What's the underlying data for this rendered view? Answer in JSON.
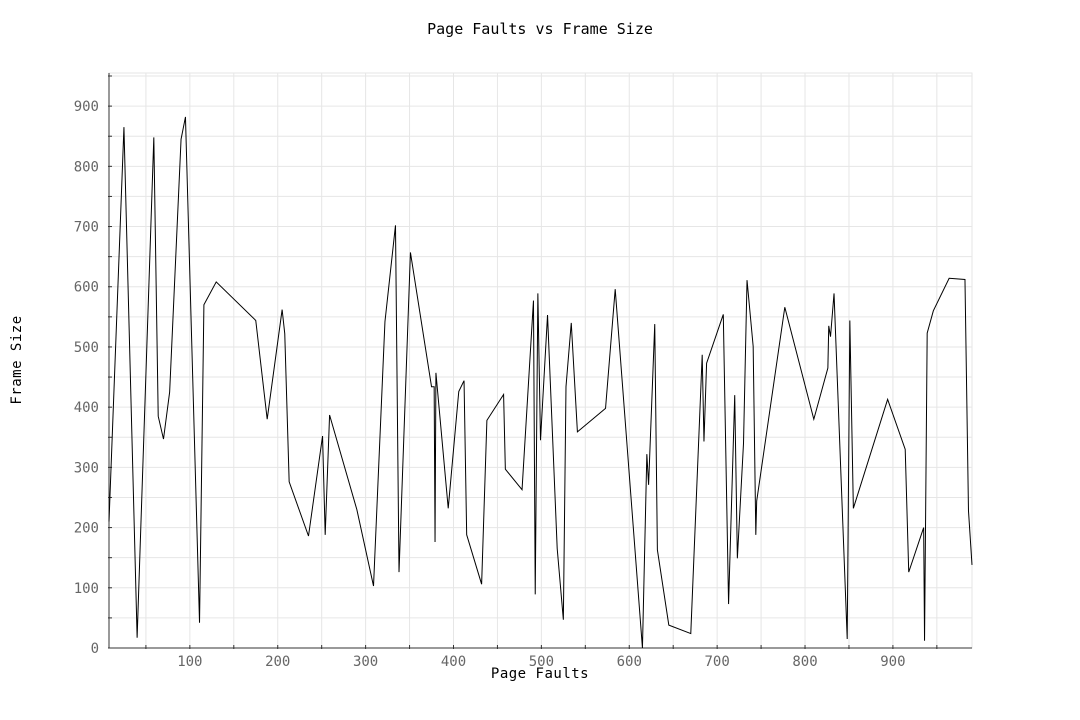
{
  "chart_data": {
    "type": "line",
    "title": "Page Faults vs Frame Size",
    "xlabel": "Page Faults",
    "ylabel": "Frame Size",
    "xlim": [
      8,
      990
    ],
    "ylim": [
      0,
      955
    ],
    "x_ticks": [
      100,
      200,
      300,
      400,
      500,
      600,
      700,
      800,
      900
    ],
    "y_ticks": [
      0,
      100,
      200,
      300,
      400,
      500,
      600,
      700,
      800,
      900
    ],
    "grid": true,
    "legend": "none",
    "series": [
      {
        "color": "#000000",
        "points": [
          [
            8,
            210
          ],
          [
            25,
            865
          ],
          [
            40,
            17
          ],
          [
            59,
            848
          ],
          [
            64,
            385
          ],
          [
            70,
            347
          ],
          [
            77,
            425
          ],
          [
            90,
            845
          ],
          [
            95,
            882
          ],
          [
            111,
            42
          ],
          [
            116,
            570
          ],
          [
            130,
            608
          ],
          [
            175,
            544
          ],
          [
            188,
            380
          ],
          [
            205,
            562
          ],
          [
            208,
            522
          ],
          [
            213,
            276
          ],
          [
            235,
            186
          ],
          [
            251,
            352
          ],
          [
            254,
            188
          ],
          [
            259,
            387
          ],
          [
            290,
            230
          ],
          [
            309,
            103
          ],
          [
            322,
            542
          ],
          [
            334,
            702
          ],
          [
            338,
            126
          ],
          [
            351,
            657
          ],
          [
            375,
            434
          ],
          [
            378,
            434
          ],
          [
            379,
            176
          ],
          [
            380,
            457
          ],
          [
            394,
            232
          ],
          [
            406,
            426
          ],
          [
            412,
            444
          ],
          [
            415,
            188
          ],
          [
            432,
            106
          ],
          [
            438,
            378
          ],
          [
            457,
            421
          ],
          [
            459,
            297
          ],
          [
            478,
            263
          ],
          [
            491,
            577
          ],
          [
            493,
            89
          ],
          [
            496,
            589
          ],
          [
            499,
            345
          ],
          [
            507,
            553
          ],
          [
            518,
            165
          ],
          [
            525,
            47
          ],
          [
            528,
            434
          ],
          [
            534,
            540
          ],
          [
            541,
            359
          ],
          [
            573,
            398
          ],
          [
            584,
            596
          ],
          [
            615,
            0
          ],
          [
            620,
            322
          ],
          [
            622,
            271
          ],
          [
            629,
            538
          ],
          [
            632,
            163
          ],
          [
            645,
            38
          ],
          [
            670,
            24
          ],
          [
            683,
            487
          ],
          [
            685,
            343
          ],
          [
            688,
            473
          ],
          [
            707,
            554
          ],
          [
            713,
            73
          ],
          [
            720,
            420
          ],
          [
            723,
            149
          ],
          [
            730,
            340
          ],
          [
            734,
            611
          ],
          [
            741,
            501
          ],
          [
            744,
            188
          ],
          [
            745,
            244
          ],
          [
            777,
            566
          ],
          [
            810,
            380
          ],
          [
            826,
            465
          ],
          [
            827,
            535
          ],
          [
            829,
            517
          ],
          [
            833,
            589
          ],
          [
            848,
            15
          ],
          [
            851,
            544
          ],
          [
            855,
            232
          ],
          [
            894,
            413
          ],
          [
            914,
            330
          ],
          [
            918,
            126
          ],
          [
            935,
            200
          ],
          [
            936,
            12
          ],
          [
            939,
            523
          ],
          [
            946,
            560
          ],
          [
            964,
            614
          ],
          [
            982,
            612
          ],
          [
            986,
            228
          ],
          [
            990,
            138
          ]
        ]
      }
    ]
  }
}
